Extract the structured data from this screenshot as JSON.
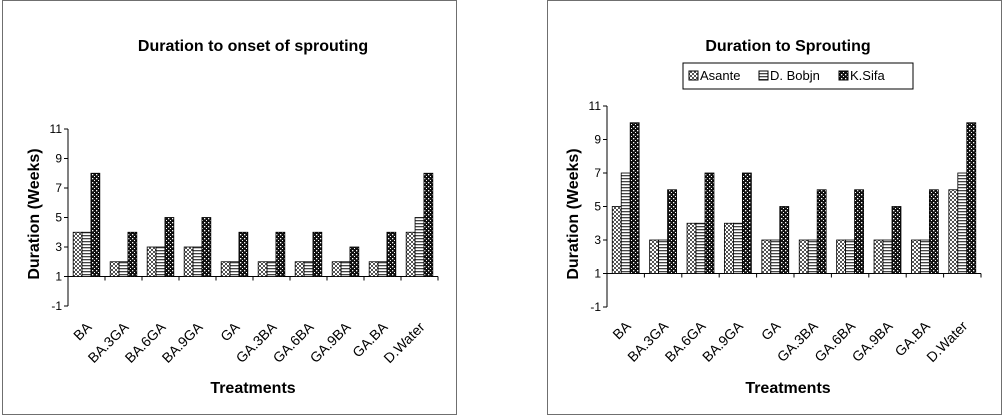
{
  "chart_data": [
    {
      "type": "bar",
      "title": "Duration to onset of sprouting",
      "xlabel": "Treatments",
      "ylabel": "Duration (Weeks)",
      "ylim": [
        -1,
        11
      ],
      "yticks": [
        -1,
        1,
        3,
        5,
        7,
        9,
        11
      ],
      "legend": "none",
      "grid": false,
      "categories": [
        "BA",
        "BA.3GA",
        "BA.6GA",
        "BA.9GA",
        "GA",
        "GA.3BA",
        "GA.6BA",
        "GA.9BA",
        "GA.BA",
        "D.Water"
      ],
      "series": [
        {
          "values": [
            4,
            2,
            3,
            3,
            2,
            2,
            2,
            2,
            2,
            4
          ]
        },
        {
          "values": [
            4,
            2,
            3,
            3,
            2,
            2,
            2,
            2,
            2,
            5
          ]
        },
        {
          "values": [
            8,
            4,
            5,
            5,
            4,
            4,
            4,
            3,
            4,
            8
          ]
        }
      ]
    },
    {
      "type": "bar",
      "title": "Duration to Sprouting",
      "xlabel": "Treatments",
      "ylabel": "Duration (Weeks)",
      "ylim": [
        -1,
        11
      ],
      "yticks": [
        -1,
        1,
        3,
        5,
        7,
        9,
        11
      ],
      "legend": "top-center",
      "grid": false,
      "categories": [
        "BA",
        "BA.3GA",
        "BA.6GA",
        "BA.9GA",
        "GA",
        "GA.3BA",
        "GA.6BA",
        "GA.9BA",
        "GA.BA",
        "D.Water"
      ],
      "series": [
        {
          "name": "Asante",
          "values": [
            5,
            3,
            4,
            4,
            3,
            3,
            3,
            3,
            3,
            6
          ]
        },
        {
          "name": "D. Bobjn",
          "values": [
            7,
            3,
            4,
            4,
            3,
            3,
            3,
            3,
            3,
            7
          ]
        },
        {
          "name": "K.Sifa",
          "values": [
            10,
            6,
            7,
            7,
            5,
            6,
            6,
            5,
            6,
            10
          ]
        }
      ]
    }
  ]
}
